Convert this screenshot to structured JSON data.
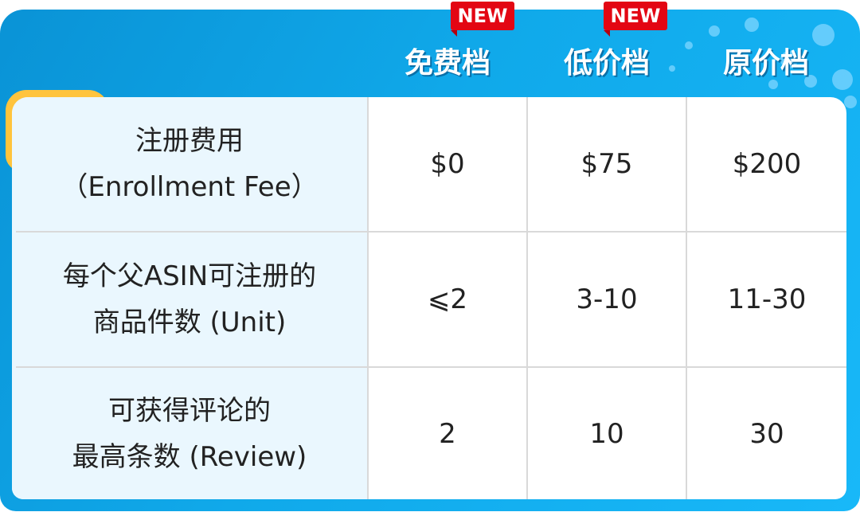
{
  "colors": {
    "panel": "#10a9ea",
    "accent_tab": "#ffc43d",
    "badge": "#e30613",
    "label_column": "#eaf7fe"
  },
  "header": {
    "columns": [
      {
        "label": "免费档",
        "badge": "NEW"
      },
      {
        "label": "低价档",
        "badge": "NEW"
      },
      {
        "label": "原价档"
      }
    ]
  },
  "rows": [
    {
      "label_line1": "注册费用",
      "label_line2": "（Enrollment Fee）",
      "values": [
        "$0",
        "$75",
        "$200"
      ]
    },
    {
      "label_line1": "每个父ASIN可注册的",
      "label_line2": "商品件数 (Unit)",
      "values": [
        "⩽2",
        "3-10",
        "11-30"
      ]
    },
    {
      "label_line1": "可获得评论的",
      "label_line2": "最高条数 (Review)",
      "values": [
        "2",
        "10",
        "30"
      ]
    }
  ]
}
